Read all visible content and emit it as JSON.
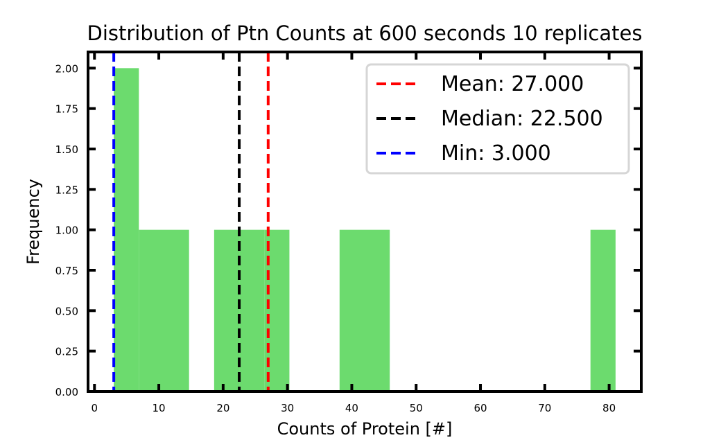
{
  "chart_data": {
    "type": "bar",
    "title": "Distribution of Ptn Counts at 600 seconds 10 replicates",
    "xlabel": "Counts of Protein [#]",
    "ylabel": "Frequency",
    "xlim": [
      -1,
      85
    ],
    "ylim": [
      0,
      2.1
    ],
    "bar_color": "#6cdb6e",
    "bins": [
      {
        "x0": 3.0,
        "x1": 6.9,
        "count": 2
      },
      {
        "x0": 6.9,
        "x1": 10.8,
        "count": 1
      },
      {
        "x0": 10.8,
        "x1": 14.7,
        "count": 1
      },
      {
        "x0": 14.7,
        "x1": 18.6,
        "count": 0
      },
      {
        "x0": 18.6,
        "x1": 22.5,
        "count": 1
      },
      {
        "x0": 22.5,
        "x1": 26.4,
        "count": 1
      },
      {
        "x0": 26.4,
        "x1": 30.3,
        "count": 1
      },
      {
        "x0": 30.3,
        "x1": 34.2,
        "count": 0
      },
      {
        "x0": 34.2,
        "x1": 38.1,
        "count": 0
      },
      {
        "x0": 38.1,
        "x1": 42.0,
        "count": 1
      },
      {
        "x0": 42.0,
        "x1": 45.9,
        "count": 1
      },
      {
        "x0": 45.9,
        "x1": 49.8,
        "count": 0
      },
      {
        "x0": 49.8,
        "x1": 53.7,
        "count": 0
      },
      {
        "x0": 53.7,
        "x1": 57.6,
        "count": 0
      },
      {
        "x0": 57.6,
        "x1": 61.5,
        "count": 0
      },
      {
        "x0": 61.5,
        "x1": 65.4,
        "count": 0
      },
      {
        "x0": 65.4,
        "x1": 69.3,
        "count": 0
      },
      {
        "x0": 69.3,
        "x1": 73.2,
        "count": 0
      },
      {
        "x0": 73.2,
        "x1": 77.1,
        "count": 0
      },
      {
        "x0": 77.1,
        "x1": 81.0,
        "count": 1
      }
    ],
    "x_ticks": [
      0,
      10,
      20,
      30,
      40,
      50,
      60,
      70,
      80
    ],
    "x_tick_labels": [
      "0",
      "10",
      "20",
      "30",
      "40",
      "50",
      "60",
      "70",
      "80"
    ],
    "y_ticks": [
      0,
      0.25,
      0.5,
      0.75,
      1.0,
      1.25,
      1.5,
      1.75,
      2.0
    ],
    "y_tick_labels": [
      "0.00",
      "0.25",
      "0.50",
      "0.75",
      "1.00",
      "1.25",
      "1.50",
      "1.75",
      "2.00"
    ],
    "vlines": [
      {
        "label": "Mean: 27.000",
        "x": 27.0,
        "color": "#ff0000"
      },
      {
        "label": "Median: 22.500",
        "x": 22.5,
        "color": "#000000"
      },
      {
        "label": "Min: 3.000",
        "x": 3.0,
        "color": "#0000ff"
      }
    ],
    "legend_position": "top-right",
    "grid": false
  }
}
